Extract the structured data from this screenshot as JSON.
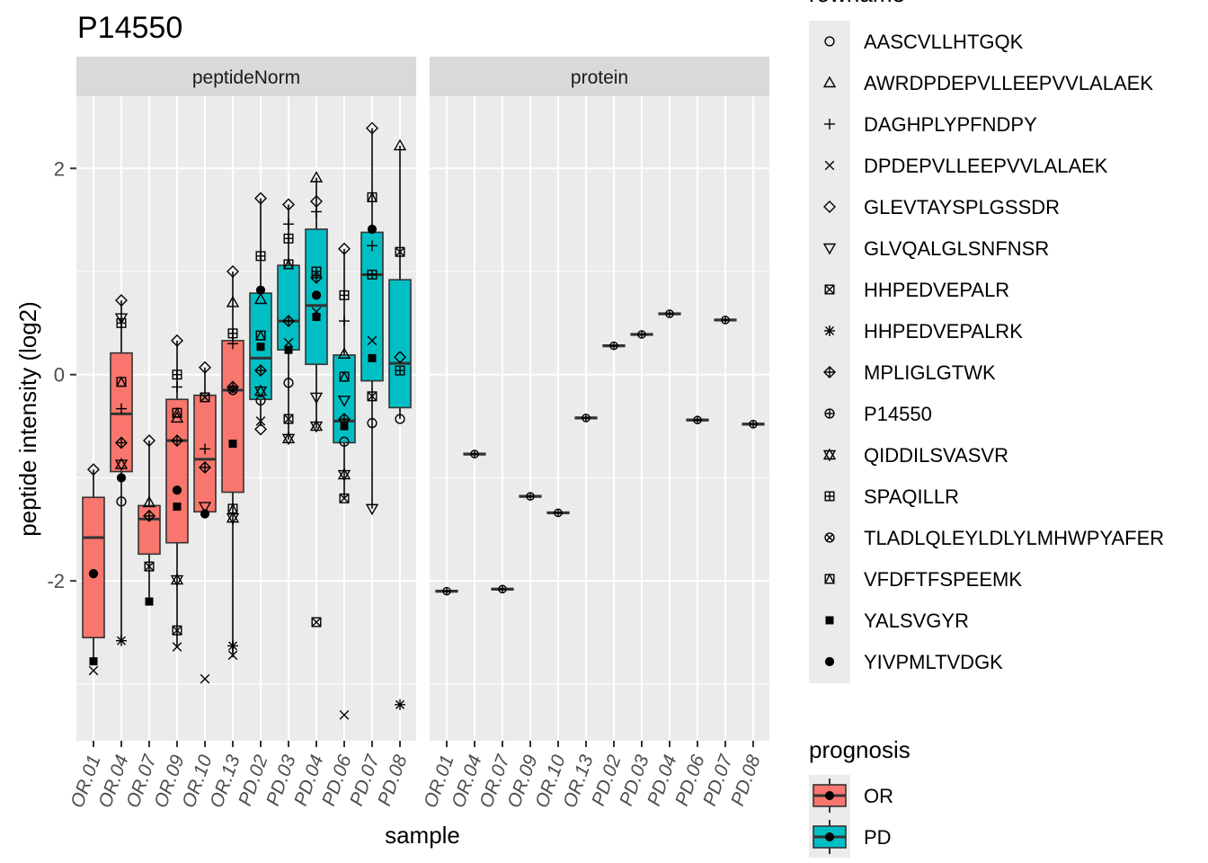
{
  "chart_data": {
    "type": "box",
    "title": "P14550",
    "xlabel": "sample",
    "ylabel": "peptide intensity (log2)",
    "ylim": [
      -3.55,
      2.7
    ],
    "yticks": [
      -2,
      0,
      2
    ],
    "ytick_labels": [
      "-2",
      "0",
      "2"
    ],
    "grid": true,
    "legend_position": "right",
    "facets": [
      "peptideNorm",
      "protein"
    ],
    "samples": [
      "OR.01",
      "OR.04",
      "OR.07",
      "OR.09",
      "OR.10",
      "OR.13",
      "PD.02",
      "PD.03",
      "PD.04",
      "PD.06",
      "PD.07",
      "PD.08"
    ],
    "groups": [
      "OR",
      "OR",
      "OR",
      "OR",
      "OR",
      "OR",
      "PD",
      "PD",
      "PD",
      "PD",
      "PD",
      "PD"
    ],
    "group_colors": {
      "OR": "#F8766D",
      "PD": "#00BFC4"
    },
    "shapes": [
      "circle-open",
      "triangle-open",
      "plus",
      "cross",
      "diamond-open",
      "triangle-down-open",
      "square-cross",
      "asterisk",
      "diamond-plus",
      "circle-plus",
      "star-of-david",
      "square-plus",
      "circle-cross",
      "square-triangle",
      "square-filled",
      "circle-filled"
    ],
    "rowname_legend": {
      "title": "rowname",
      "entries": [
        "AASCVLLHTGQK",
        "AWRDPDEPVLLEEPVVLALAEK",
        "DAGHPLYPFNDPY",
        "DPDEPVLLEEPVVLALAEK",
        "GLEVTAYSPLGSSDR",
        "GLVQALGLSNFNSR",
        "HHPEDVEPALR",
        "HHPEDVEPALRK",
        "MPLIGLGTWK",
        "P14550",
        "QIDDILSVASVR",
        "SPAQILLR",
        "TLADLQLEYLDLYLMHWPYAFER",
        "VFDFTFSPEEMK",
        "YALSVGYR",
        "YIVPMLTVDGK"
      ]
    },
    "prognosis_legend": {
      "title": "prognosis",
      "entries": [
        "OR",
        "PD"
      ]
    },
    "boxes": [
      {
        "sample": "OR.01",
        "q1": -2.55,
        "median": -1.58,
        "q3": -1.19,
        "whisker_low": -2.8,
        "whisker_high": -0.92
      },
      {
        "sample": "OR.04",
        "q1": -0.94,
        "median": -0.38,
        "q3": 0.21,
        "whisker_low": -2.58,
        "whisker_high": 0.72
      },
      {
        "sample": "OR.07",
        "q1": -1.74,
        "median": -1.4,
        "q3": -1.27,
        "whisker_low": -2.2,
        "whisker_high": -0.64
      },
      {
        "sample": "OR.09",
        "q1": -1.63,
        "median": -0.64,
        "q3": -0.24,
        "whisker_low": -2.64,
        "whisker_high": 0.33
      },
      {
        "sample": "OR.10",
        "q1": -1.33,
        "median": -0.82,
        "q3": -0.2,
        "whisker_low": -1.33,
        "whisker_high": 0.07
      },
      {
        "sample": "OR.13",
        "q1": -1.14,
        "median": -0.15,
        "q3": 0.33,
        "whisker_low": -2.74,
        "whisker_high": 1.0
      },
      {
        "sample": "PD.02",
        "q1": -0.24,
        "median": 0.16,
        "q3": 0.79,
        "whisker_low": -0.5,
        "whisker_high": 1.71
      },
      {
        "sample": "PD.03",
        "q1": 0.24,
        "median": 0.52,
        "q3": 1.06,
        "whisker_low": -0.63,
        "whisker_high": 1.65
      },
      {
        "sample": "PD.04",
        "q1": 0.1,
        "median": 0.67,
        "q3": 1.41,
        "whisker_low": -0.52,
        "whisker_high": 1.91
      },
      {
        "sample": "PD.06",
        "q1": -0.66,
        "median": -0.45,
        "q3": 0.19,
        "whisker_low": -1.2,
        "whisker_high": 1.22
      },
      {
        "sample": "PD.07",
        "q1": -0.06,
        "median": 0.97,
        "q3": 1.38,
        "whisker_low": -1.3,
        "whisker_high": 2.39
      },
      {
        "sample": "PD.08",
        "q1": -0.32,
        "median": 0.11,
        "q3": 0.92,
        "whisker_low": -0.43,
        "whisker_high": 2.22
      }
    ],
    "points": [
      {
        "sample": "OR.01",
        "shape": "cross",
        "y": -2.87
      },
      {
        "sample": "OR.01",
        "shape": "square-filled",
        "y": -2.78
      },
      {
        "sample": "OR.01",
        "shape": "circle-filled",
        "y": -1.93
      },
      {
        "sample": "OR.01",
        "shape": "diamond-open",
        "y": -0.92
      },
      {
        "sample": "OR.04",
        "shape": "asterisk",
        "y": -2.58
      },
      {
        "sample": "OR.04",
        "shape": "circle-open",
        "y": -1.23
      },
      {
        "sample": "OR.04",
        "shape": "circle-filled",
        "y": -1.0
      },
      {
        "sample": "OR.04",
        "shape": "star-of-david",
        "y": -0.87
      },
      {
        "sample": "OR.04",
        "shape": "diamond-plus",
        "y": -0.66
      },
      {
        "sample": "OR.04",
        "shape": "plus",
        "y": -0.33
      },
      {
        "sample": "OR.04",
        "shape": "square-triangle",
        "y": -0.07
      },
      {
        "sample": "OR.04",
        "shape": "square-plus",
        "y": 0.5
      },
      {
        "sample": "OR.04",
        "shape": "triangle-down-open",
        "y": 0.55
      },
      {
        "sample": "OR.04",
        "shape": "diamond-open",
        "y": 0.72
      },
      {
        "sample": "OR.07",
        "shape": "square-filled",
        "y": -2.2
      },
      {
        "sample": "OR.07",
        "shape": "square-cross",
        "y": -1.86
      },
      {
        "sample": "OR.07",
        "shape": "diamond-plus",
        "y": -1.37
      },
      {
        "sample": "OR.07",
        "shape": "triangle-open",
        "y": -1.24
      },
      {
        "sample": "OR.07",
        "shape": "diamond-open",
        "y": -0.64
      },
      {
        "sample": "OR.09",
        "shape": "cross",
        "y": -2.64
      },
      {
        "sample": "OR.09",
        "shape": "square-cross",
        "y": -2.48
      },
      {
        "sample": "OR.09",
        "shape": "star-of-david",
        "y": -1.99
      },
      {
        "sample": "OR.09",
        "shape": "square-filled",
        "y": -1.28
      },
      {
        "sample": "OR.09",
        "shape": "circle-filled",
        "y": -1.12
      },
      {
        "sample": "OR.09",
        "shape": "diamond-plus",
        "y": -0.64
      },
      {
        "sample": "OR.09",
        "shape": "triangle-open",
        "y": -0.42
      },
      {
        "sample": "OR.09",
        "shape": "square-triangle",
        "y": -0.37
      },
      {
        "sample": "OR.09",
        "shape": "plus",
        "y": -0.12
      },
      {
        "sample": "OR.09",
        "shape": "square-plus",
        "y": 0.0
      },
      {
        "sample": "OR.09",
        "shape": "diamond-open",
        "y": 0.33
      },
      {
        "sample": "OR.10",
        "shape": "cross",
        "y": -2.95
      },
      {
        "sample": "OR.10",
        "shape": "circle-filled",
        "y": -1.35
      },
      {
        "sample": "OR.10",
        "shape": "triangle-down-open",
        "y": -1.28
      },
      {
        "sample": "OR.10",
        "shape": "diamond-plus",
        "y": -0.9
      },
      {
        "sample": "OR.10",
        "shape": "plus",
        "y": -0.72
      },
      {
        "sample": "OR.10",
        "shape": "square-cross",
        "y": -0.22
      },
      {
        "sample": "OR.10",
        "shape": "diamond-open",
        "y": 0.07
      },
      {
        "sample": "OR.13",
        "shape": "asterisk",
        "y": -2.63
      },
      {
        "sample": "OR.13",
        "shape": "cross",
        "y": -2.72
      },
      {
        "sample": "OR.13",
        "shape": "star-of-david",
        "y": -1.39
      },
      {
        "sample": "OR.13",
        "shape": "square-triangle",
        "y": -1.3
      },
      {
        "sample": "OR.13",
        "shape": "square-filled",
        "y": -0.67
      },
      {
        "sample": "OR.13",
        "shape": "circle-cross",
        "y": -0.15
      },
      {
        "sample": "OR.13",
        "shape": "diamond-plus",
        "y": -0.12
      },
      {
        "sample": "OR.13",
        "shape": "plus",
        "y": 0.3
      },
      {
        "sample": "OR.13",
        "shape": "square-plus",
        "y": 0.4
      },
      {
        "sample": "OR.13",
        "shape": "triangle-open",
        "y": 0.7
      },
      {
        "sample": "OR.13",
        "shape": "diamond-open",
        "y": 1.0
      },
      {
        "sample": "PD.02",
        "shape": "diamond-open",
        "y": -0.53
      },
      {
        "sample": "PD.02",
        "shape": "cross",
        "y": -0.45
      },
      {
        "sample": "PD.02",
        "shape": "circle-open",
        "y": -0.25
      },
      {
        "sample": "PD.02",
        "shape": "star-of-david",
        "y": -0.16
      },
      {
        "sample": "PD.02",
        "shape": "diamond-plus",
        "y": 0.04
      },
      {
        "sample": "PD.02",
        "shape": "square-filled",
        "y": 0.27
      },
      {
        "sample": "PD.02",
        "shape": "square-triangle",
        "y": 0.38
      },
      {
        "sample": "PD.02",
        "shape": "triangle-open",
        "y": 0.73
      },
      {
        "sample": "PD.02",
        "shape": "circle-filled",
        "y": 0.82
      },
      {
        "sample": "PD.02",
        "shape": "square-plus",
        "y": 1.15
      },
      {
        "sample": "PD.02",
        "shape": "diamond-open",
        "y": 1.71
      },
      {
        "sample": "PD.03",
        "shape": "star-of-david",
        "y": -0.62
      },
      {
        "sample": "PD.03",
        "shape": "square-cross",
        "y": -0.43
      },
      {
        "sample": "PD.03",
        "shape": "circle-open",
        "y": -0.08
      },
      {
        "sample": "PD.03",
        "shape": "square-filled",
        "y": 0.24
      },
      {
        "sample": "PD.03",
        "shape": "cross",
        "y": 0.31
      },
      {
        "sample": "PD.03",
        "shape": "diamond-plus",
        "y": 0.52
      },
      {
        "sample": "PD.03",
        "shape": "square-triangle",
        "y": 1.07
      },
      {
        "sample": "PD.03",
        "shape": "square-plus",
        "y": 1.32
      },
      {
        "sample": "PD.03",
        "shape": "plus",
        "y": 1.46
      },
      {
        "sample": "PD.03",
        "shape": "diamond-open",
        "y": 1.65
      },
      {
        "sample": "PD.04",
        "shape": "square-cross",
        "y": -2.4
      },
      {
        "sample": "PD.04",
        "shape": "star-of-david",
        "y": -0.5
      },
      {
        "sample": "PD.04",
        "shape": "triangle-down-open",
        "y": -0.22
      },
      {
        "sample": "PD.04",
        "shape": "circle-filled",
        "y": 0.77
      },
      {
        "sample": "PD.04",
        "shape": "square-filled",
        "y": 0.56
      },
      {
        "sample": "PD.04",
        "shape": "cross",
        "y": 0.61
      },
      {
        "sample": "PD.04",
        "shape": "diamond-plus",
        "y": 0.94
      },
      {
        "sample": "PD.04",
        "shape": "square-plus",
        "y": 1.0
      },
      {
        "sample": "PD.04",
        "shape": "plus",
        "y": 1.58
      },
      {
        "sample": "PD.04",
        "shape": "diamond-open",
        "y": 1.68
      },
      {
        "sample": "PD.04",
        "shape": "triangle-open",
        "y": 1.91
      },
      {
        "sample": "PD.06",
        "shape": "cross",
        "y": -3.3
      },
      {
        "sample": "PD.06",
        "shape": "square-cross",
        "y": -1.2
      },
      {
        "sample": "PD.06",
        "shape": "star-of-david",
        "y": -0.97
      },
      {
        "sample": "PD.06",
        "shape": "circle-open",
        "y": -0.65
      },
      {
        "sample": "PD.06",
        "shape": "square-filled",
        "y": -0.5
      },
      {
        "sample": "PD.06",
        "shape": "diamond-plus",
        "y": -0.43
      },
      {
        "sample": "PD.06",
        "shape": "triangle-down-open",
        "y": -0.25
      },
      {
        "sample": "PD.06",
        "shape": "square-triangle",
        "y": -0.02
      },
      {
        "sample": "PD.06",
        "shape": "triangle-open",
        "y": 0.2
      },
      {
        "sample": "PD.06",
        "shape": "plus",
        "y": 0.52
      },
      {
        "sample": "PD.06",
        "shape": "square-plus",
        "y": 0.77
      },
      {
        "sample": "PD.06",
        "shape": "diamond-open",
        "y": 1.22
      },
      {
        "sample": "PD.07",
        "shape": "triangle-down-open",
        "y": -1.3
      },
      {
        "sample": "PD.07",
        "shape": "circle-open",
        "y": -0.47
      },
      {
        "sample": "PD.07",
        "shape": "square-cross",
        "y": -0.21
      },
      {
        "sample": "PD.07",
        "shape": "square-filled",
        "y": 0.16
      },
      {
        "sample": "PD.07",
        "shape": "cross",
        "y": 0.33
      },
      {
        "sample": "PD.07",
        "shape": "square-plus",
        "y": 0.97
      },
      {
        "sample": "PD.07",
        "shape": "plus",
        "y": 1.25
      },
      {
        "sample": "PD.07",
        "shape": "circle-filled",
        "y": 1.41
      },
      {
        "sample": "PD.07",
        "shape": "square-triangle",
        "y": 1.72
      },
      {
        "sample": "PD.07",
        "shape": "diamond-open",
        "y": 2.39
      },
      {
        "sample": "PD.08",
        "shape": "asterisk",
        "y": -3.2
      },
      {
        "sample": "PD.08",
        "shape": "circle-open",
        "y": -0.43
      },
      {
        "sample": "PD.08",
        "shape": "square-plus",
        "y": 0.04
      },
      {
        "sample": "PD.08",
        "shape": "diamond-open",
        "y": 0.17
      },
      {
        "sample": "PD.08",
        "shape": "square-cross",
        "y": 1.19
      },
      {
        "sample": "PD.08",
        "shape": "triangle-open",
        "y": 2.22
      }
    ],
    "protein_values": [
      {
        "sample": "OR.01",
        "y": -2.1
      },
      {
        "sample": "OR.04",
        "y": -0.77
      },
      {
        "sample": "OR.07",
        "y": -2.08
      },
      {
        "sample": "OR.09",
        "y": -1.18
      },
      {
        "sample": "OR.10",
        "y": -1.34
      },
      {
        "sample": "OR.13",
        "y": -0.42
      },
      {
        "sample": "PD.02",
        "y": 0.28
      },
      {
        "sample": "PD.03",
        "y": 0.39
      },
      {
        "sample": "PD.04",
        "y": 0.59
      },
      {
        "sample": "PD.06",
        "y": -0.44
      },
      {
        "sample": "PD.07",
        "y": 0.53
      },
      {
        "sample": "PD.08",
        "y": -0.48
      }
    ]
  }
}
